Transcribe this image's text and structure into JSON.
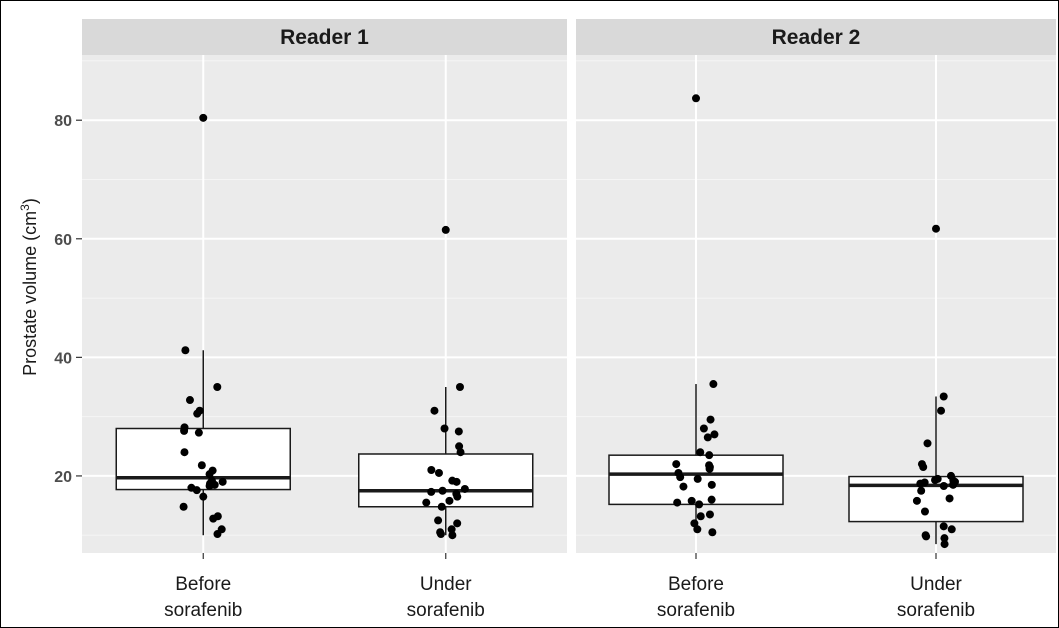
{
  "chart_data": {
    "type": "box",
    "ylabel": "Prostate volume (cm",
    "ylabel_sup": "3",
    "ylabel_close": ")",
    "yticks": [
      20,
      40,
      60,
      80
    ],
    "ylim": [
      7,
      91
    ],
    "grid": true,
    "panels": [
      {
        "title": "Reader 1",
        "categories": [
          {
            "label_lines": [
              "Before",
              "sorafenib"
            ],
            "box": {
              "q1": 17.7,
              "median": 19.7,
              "q3": 28.0,
              "whisker_low": 10.0,
              "whisker_high": 41.2
            },
            "points": [
              80.4,
              41.2,
              35.0,
              32.8,
              31.0,
              30.5,
              28.2,
              27.6,
              27.3,
              24.0,
              21.8,
              20.9,
              20.3,
              19.2,
              19.0,
              18.7,
              18.5,
              18.3,
              18.0,
              17.6,
              16.5,
              14.8,
              13.2,
              12.8,
              11.0,
              10.2
            ]
          },
          {
            "label_lines": [
              "Under",
              "sorafenib"
            ],
            "box": {
              "q1": 14.8,
              "median": 17.5,
              "q3": 23.7,
              "whisker_low": 10.0,
              "whisker_high": 35.0
            },
            "points": [
              61.5,
              35.0,
              31.0,
              28.0,
              27.5,
              25.0,
              24.0,
              21.0,
              20.5,
              19.2,
              19.0,
              17.8,
              17.5,
              17.3,
              17.0,
              16.5,
              15.8,
              15.5,
              14.8,
              12.5,
              12.0,
              11.0,
              10.5,
              10.2,
              10.0
            ]
          }
        ]
      },
      {
        "title": "Reader 2",
        "categories": [
          {
            "label_lines": [
              "Before",
              "sorafenib"
            ],
            "box": {
              "q1": 15.2,
              "median": 20.3,
              "q3": 23.5,
              "whisker_low": 10.5,
              "whisker_high": 35.5
            },
            "points": [
              83.7,
              35.5,
              29.5,
              28.0,
              27.0,
              26.5,
              24.0,
              23.5,
              22.0,
              21.8,
              21.5,
              21.2,
              20.5,
              19.8,
              19.5,
              18.5,
              18.2,
              16.0,
              15.8,
              15.5,
              15.2,
              13.5,
              13.2,
              12.0,
              11.0,
              10.5
            ]
          },
          {
            "label_lines": [
              "Under",
              "sorafenib"
            ],
            "box": {
              "q1": 12.3,
              "median": 18.4,
              "q3": 19.9,
              "whisker_low": 8.5,
              "whisker_high": 33.4
            },
            "points": [
              61.7,
              33.4,
              31.0,
              25.5,
              22.0,
              21.5,
              20.0,
              19.5,
              19.3,
              19.2,
              19.0,
              18.9,
              18.8,
              18.7,
              18.5,
              18.3,
              17.5,
              16.2,
              15.8,
              14.0,
              11.5,
              11.0,
              10.0,
              9.8,
              9.5,
              8.5
            ]
          }
        ]
      }
    ]
  }
}
